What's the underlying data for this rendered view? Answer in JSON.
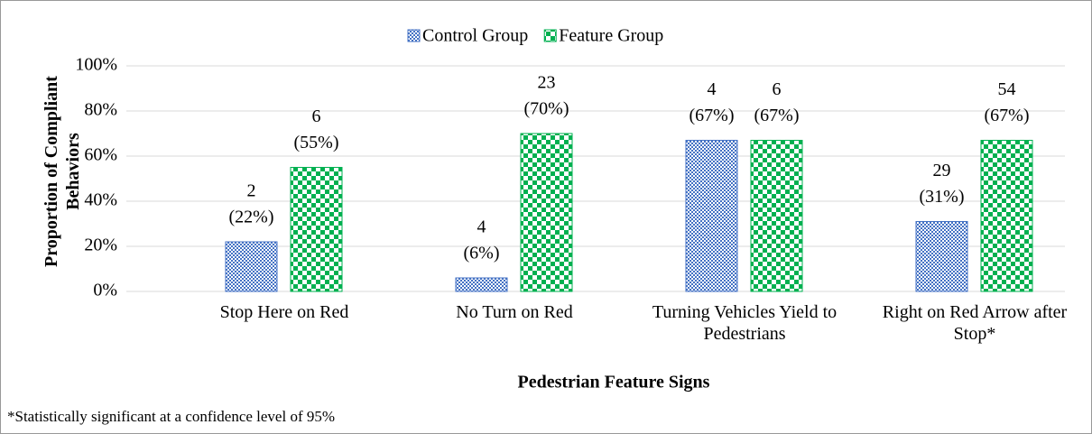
{
  "chart_data": {
    "type": "bar",
    "categories": [
      "Stop Here on Red",
      "No Turn on Red",
      "Turning Vehicles Yield to Pedestrians",
      "Right on Red Arrow after Stop*"
    ],
    "series": [
      {
        "name": "Control Group",
        "color": "#4472c4",
        "values": [
          22,
          6,
          67,
          31
        ],
        "counts": [
          2,
          4,
          4,
          29
        ],
        "value_labels": [
          "(22%)",
          "(6%)",
          "(67%)",
          "(31%)"
        ]
      },
      {
        "name": "Feature Group",
        "color": "#00b050",
        "values": [
          55,
          70,
          67,
          67
        ],
        "counts": [
          6,
          23,
          6,
          54
        ],
        "value_labels": [
          "(55%)",
          "(70%)",
          "(67%)",
          "(67%)"
        ]
      }
    ],
    "ylim": [
      0,
      100
    ],
    "yticks": [
      {
        "value": 0,
        "label": "0%"
      },
      {
        "value": 20,
        "label": "20%"
      },
      {
        "value": 40,
        "label": "40%"
      },
      {
        "value": 60,
        "label": "60%"
      },
      {
        "value": 80,
        "label": "80%"
      },
      {
        "value": 100,
        "label": "100%"
      }
    ],
    "y_label": "Proportion of Compliant Behaviors",
    "x_label": "Pedestrian Feature Signs",
    "grid": true,
    "legend": "top",
    "footnote": "*Statistically significant at a confidence level of 95%"
  }
}
